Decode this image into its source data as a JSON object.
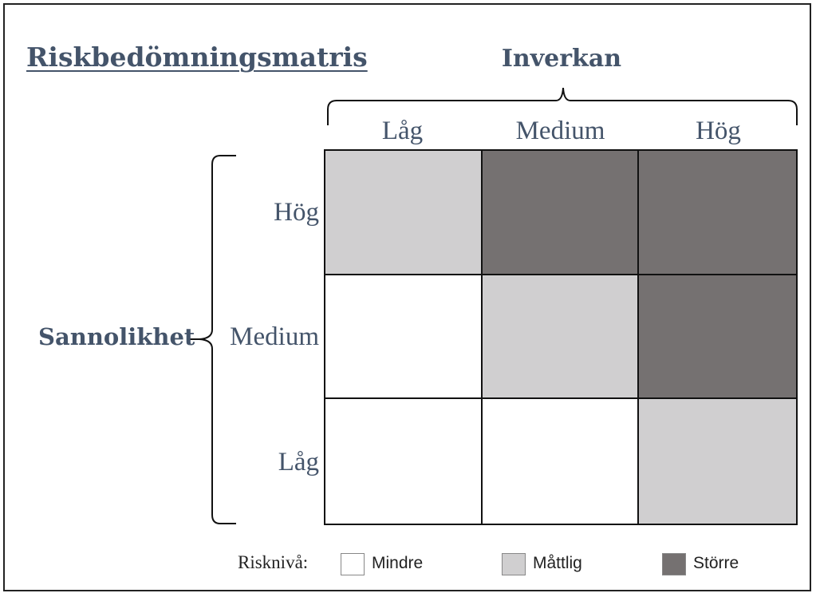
{
  "title": "Riskbedömningsmatris",
  "impact_axis": {
    "title": "Inverkan",
    "levels": [
      "Låg",
      "Medium",
      "Hög"
    ]
  },
  "probability_axis": {
    "title": "Sannolikhet",
    "levels": [
      "Hög",
      "Medium",
      "Låg"
    ]
  },
  "matrix": [
    [
      "Måttlig",
      "Större",
      "Större"
    ],
    [
      "Mindre",
      "Måttlig",
      "Större"
    ],
    [
      "Mindre",
      "Mindre",
      "Måttlig"
    ]
  ],
  "legend": {
    "title": "Risknivå:",
    "items": [
      {
        "label": "Mindre",
        "color": "#ffffff"
      },
      {
        "label": "Måttlig",
        "color": "#d0cfd0"
      },
      {
        "label": "Större",
        "color": "#757171"
      }
    ]
  }
}
